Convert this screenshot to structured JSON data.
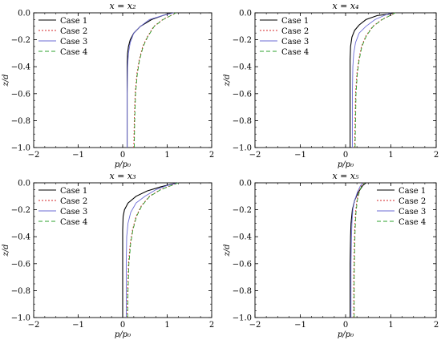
{
  "chart_data": [
    {
      "type": "line",
      "title": "x = x₂",
      "xlabel": "p/p₀",
      "ylabel": "z/d",
      "xlim": [
        -2,
        2
      ],
      "ylim": [
        -1.0,
        0.0
      ],
      "xticks": [
        "−2",
        "−1",
        "0",
        "1",
        "2"
      ],
      "yticks": [
        "0.0",
        "−0.2",
        "−0.4",
        "−0.6",
        "−0.8",
        "−1.0"
      ],
      "legend_position": "top-left",
      "series": [
        {
          "name": "Case 1",
          "color": "#000000",
          "dash": "solid",
          "x": [
            0.1,
            0.1,
            0.1,
            0.11,
            0.13,
            0.17,
            0.25,
            0.4,
            0.65,
            0.9,
            1.1
          ],
          "y": [
            -1.0,
            -0.6,
            -0.4,
            -0.3,
            -0.25,
            -0.2,
            -0.15,
            -0.1,
            -0.05,
            -0.02,
            0.0
          ]
        },
        {
          "name": "Case 2",
          "color": "#d62728",
          "dash": "dotted",
          "x": [
            0.25,
            0.26,
            0.28,
            0.32,
            0.37,
            0.45,
            0.55,
            0.7,
            0.9,
            1.2
          ],
          "y": [
            -1.0,
            -0.8,
            -0.6,
            -0.45,
            -0.35,
            -0.25,
            -0.18,
            -0.1,
            -0.05,
            0.0
          ]
        },
        {
          "name": "Case 3",
          "color": "#6b6bd6",
          "dash": "solid",
          "x": [
            0.1,
            0.1,
            0.11,
            0.13,
            0.17,
            0.25,
            0.4,
            0.6,
            0.9,
            1.15
          ],
          "y": [
            -1.0,
            -0.6,
            -0.4,
            -0.3,
            -0.22,
            -0.15,
            -0.1,
            -0.05,
            -0.02,
            0.0
          ]
        },
        {
          "name": "Case 4",
          "color": "#2ca02c",
          "dash": "dashed",
          "x": [
            0.26,
            0.27,
            0.29,
            0.33,
            0.38,
            0.46,
            0.56,
            0.71,
            0.91,
            1.2
          ],
          "y": [
            -1.0,
            -0.8,
            -0.6,
            -0.45,
            -0.35,
            -0.25,
            -0.18,
            -0.1,
            -0.05,
            0.0
          ]
        }
      ]
    },
    {
      "type": "line",
      "title": "x = x₄",
      "xlabel": "p/p₀",
      "ylabel": "z/d",
      "xlim": [
        -2,
        2
      ],
      "ylim": [
        -1.0,
        0.0
      ],
      "xticks": [
        "−2",
        "−1",
        "0",
        "1",
        "2"
      ],
      "yticks": [
        "0.0",
        "−0.2",
        "−0.4",
        "−0.6",
        "−0.8",
        "−1.0"
      ],
      "legend_position": "top-left",
      "series": [
        {
          "name": "Case 1",
          "color": "#000000",
          "dash": "solid",
          "x": [
            0.1,
            0.1,
            0.1,
            0.11,
            0.14,
            0.2,
            0.3,
            0.45,
            0.7,
            0.95,
            1.05
          ],
          "y": [
            -1.0,
            -0.6,
            -0.35,
            -0.25,
            -0.18,
            -0.13,
            -0.09,
            -0.05,
            -0.02,
            -0.01,
            0.0
          ]
        },
        {
          "name": "Case 2",
          "color": "#d62728",
          "dash": "dotted",
          "x": [
            0.2,
            0.21,
            0.22,
            0.25,
            0.29,
            0.35,
            0.45,
            0.6,
            0.8,
            1.1
          ],
          "y": [
            -1.0,
            -0.8,
            -0.6,
            -0.45,
            -0.35,
            -0.25,
            -0.17,
            -0.1,
            -0.05,
            0.0
          ]
        },
        {
          "name": "Case 3",
          "color": "#6b6bd6",
          "dash": "solid",
          "x": [
            0.15,
            0.15,
            0.16,
            0.18,
            0.22,
            0.3,
            0.45,
            0.65,
            0.85,
            1.0
          ],
          "y": [
            -1.0,
            -0.6,
            -0.4,
            -0.3,
            -0.22,
            -0.15,
            -0.1,
            -0.05,
            -0.02,
            0.0
          ]
        },
        {
          "name": "Case 4",
          "color": "#2ca02c",
          "dash": "dashed",
          "x": [
            0.21,
            0.22,
            0.23,
            0.26,
            0.3,
            0.36,
            0.46,
            0.61,
            0.81,
            1.1
          ],
          "y": [
            -1.0,
            -0.8,
            -0.6,
            -0.45,
            -0.35,
            -0.25,
            -0.17,
            -0.1,
            -0.05,
            0.0
          ]
        }
      ]
    },
    {
      "type": "line",
      "title": "x = x₃",
      "xlabel": "p/p₀",
      "ylabel": "z/d",
      "xlim": [
        -2,
        2
      ],
      "ylim": [
        -1.0,
        0.0
      ],
      "xticks": [
        "−2",
        "−1",
        "0",
        "1",
        "2"
      ],
      "yticks": [
        "0.0",
        "−0.2",
        "−0.4",
        "−0.6",
        "−0.8",
        "−1.0"
      ],
      "legend_position": "top-left",
      "series": [
        {
          "name": "Case 1",
          "color": "#000000",
          "dash": "solid",
          "x": [
            0.0,
            0.0,
            0.0,
            0.01,
            0.04,
            0.12,
            0.3,
            0.55,
            0.85,
            1.1,
            1.25
          ],
          "y": [
            -1.0,
            -0.6,
            -0.35,
            -0.25,
            -0.2,
            -0.15,
            -0.1,
            -0.06,
            -0.03,
            -0.01,
            0.0
          ]
        },
        {
          "name": "Case 2",
          "color": "#d62728",
          "dash": "dotted",
          "x": [
            0.1,
            0.11,
            0.13,
            0.17,
            0.22,
            0.3,
            0.42,
            0.6,
            0.85,
            1.25
          ],
          "y": [
            -1.0,
            -0.8,
            -0.6,
            -0.45,
            -0.35,
            -0.25,
            -0.17,
            -0.1,
            -0.05,
            0.0
          ]
        },
        {
          "name": "Case 3",
          "color": "#6b6bd6",
          "dash": "solid",
          "x": [
            0.08,
            0.08,
            0.09,
            0.12,
            0.18,
            0.3,
            0.5,
            0.75,
            1.0,
            1.25
          ],
          "y": [
            -1.0,
            -0.6,
            -0.4,
            -0.3,
            -0.22,
            -0.15,
            -0.1,
            -0.05,
            -0.02,
            0.0
          ]
        },
        {
          "name": "Case 4",
          "color": "#2ca02c",
          "dash": "dashed",
          "x": [
            0.11,
            0.12,
            0.14,
            0.18,
            0.23,
            0.31,
            0.43,
            0.61,
            0.86,
            1.25
          ],
          "y": [
            -1.0,
            -0.8,
            -0.6,
            -0.45,
            -0.35,
            -0.25,
            -0.17,
            -0.1,
            -0.05,
            0.0
          ]
        }
      ]
    },
    {
      "type": "line",
      "title": "x = x₅",
      "xlabel": "p/p₀",
      "ylabel": "z/d",
      "xlim": [
        -2,
        2
      ],
      "ylim": [
        -1.0,
        0.0
      ],
      "xticks": [
        "−2",
        "−1",
        "0",
        "1",
        "2"
      ],
      "yticks": [
        "0.0",
        "−0.2",
        "−0.4",
        "−0.6",
        "−0.8",
        "−1.0"
      ],
      "legend_position": "top-right",
      "series": [
        {
          "name": "Case 1",
          "color": "#000000",
          "dash": "solid",
          "x": [
            0.1,
            0.1,
            0.11,
            0.12,
            0.15,
            0.2,
            0.28,
            0.38,
            0.45
          ],
          "y": [
            -1.0,
            -0.6,
            -0.4,
            -0.3,
            -0.2,
            -0.13,
            -0.07,
            -0.02,
            0.0
          ]
        },
        {
          "name": "Case 2",
          "color": "#d62728",
          "dash": "dotted",
          "x": [
            0.18,
            0.18,
            0.19,
            0.2,
            0.22,
            0.25,
            0.3,
            0.35,
            0.4
          ],
          "y": [
            -1.0,
            -0.7,
            -0.5,
            -0.35,
            -0.22,
            -0.13,
            -0.06,
            -0.02,
            0.0
          ]
        },
        {
          "name": "Case 3",
          "color": "#6b6bd6",
          "dash": "solid",
          "x": [
            0.12,
            0.12,
            0.13,
            0.14,
            0.16,
            0.2,
            0.26,
            0.33,
            0.38
          ],
          "y": [
            -1.0,
            -0.6,
            -0.4,
            -0.3,
            -0.2,
            -0.13,
            -0.07,
            -0.02,
            0.0
          ]
        },
        {
          "name": "Case 4",
          "color": "#2ca02c",
          "dash": "dashed",
          "x": [
            0.19,
            0.19,
            0.2,
            0.21,
            0.23,
            0.26,
            0.31,
            0.36,
            0.41
          ],
          "y": [
            -1.0,
            -0.7,
            -0.5,
            -0.35,
            -0.22,
            -0.13,
            -0.06,
            -0.02,
            0.0
          ]
        }
      ]
    }
  ]
}
